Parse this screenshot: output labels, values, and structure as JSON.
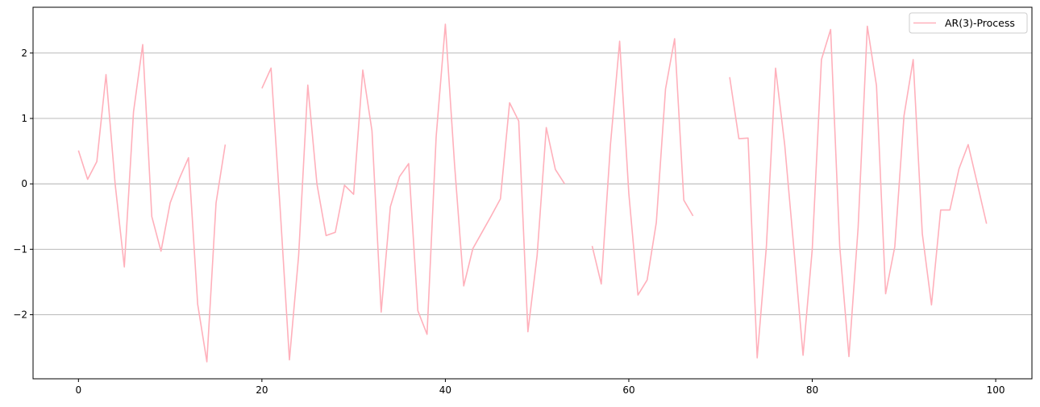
{
  "chart_data": {
    "type": "line",
    "title": "",
    "xlabel": "",
    "ylabel": "",
    "xlim": [
      -4.95,
      103.95
    ],
    "ylim": [
      -2.98,
      2.7
    ],
    "xticks": [
      0,
      20,
      40,
      60,
      80,
      100
    ],
    "yticks": [
      -2,
      -1,
      0,
      1,
      2
    ],
    "xtick_labels": [
      "0",
      "20",
      "40",
      "60",
      "80",
      "100"
    ],
    "ytick_labels": [
      "−2",
      "−1",
      "0",
      "1",
      "2"
    ],
    "grid": "y-axis only",
    "legend_position": "top-right",
    "series": [
      {
        "name": "AR(3)-Process",
        "color": "#ffb0bb",
        "x": [
          0,
          1,
          2,
          3,
          4,
          5,
          6,
          7,
          8,
          9,
          10,
          11,
          12,
          13,
          14,
          15,
          16,
          17,
          18,
          19,
          20,
          21,
          22,
          23,
          24,
          25,
          26,
          27,
          28,
          29,
          30,
          31,
          32,
          33,
          34,
          35,
          36,
          37,
          38,
          39,
          40,
          41,
          42,
          43,
          44,
          45,
          46,
          47,
          48,
          49,
          50,
          51,
          52,
          53,
          54,
          55,
          56,
          57,
          58,
          59,
          60,
          61,
          62,
          63,
          64,
          65,
          66,
          67,
          68,
          69,
          70,
          71,
          72,
          73,
          74,
          75,
          76,
          77,
          78,
          79,
          80,
          81,
          82,
          83,
          84,
          85,
          86,
          87,
          88,
          89,
          90,
          91,
          92,
          93,
          94,
          95,
          96,
          97,
          98,
          99
        ],
        "values": [
          0.51,
          0.07,
          0.34,
          1.67,
          0.0,
          -1.27,
          1.1,
          2.13,
          -0.5,
          -1.03,
          -0.29,
          0.08,
          0.4,
          -1.84,
          -2.72,
          -0.29,
          0.6,
          null,
          null,
          null,
          1.46,
          1.77,
          -0.4,
          -2.69,
          -1.1,
          1.51,
          0.0,
          -0.79,
          -0.74,
          -0.02,
          -0.16,
          1.74,
          0.81,
          -1.96,
          -0.35,
          0.11,
          0.31,
          -1.94,
          -2.3,
          0.72,
          2.44,
          0.3,
          -1.56,
          -0.99,
          -0.74,
          -0.49,
          -0.23,
          1.24,
          0.96,
          -2.26,
          -1.1,
          0.86,
          0.22,
          0.0,
          null,
          null,
          -0.95,
          -1.53,
          0.6,
          2.18,
          -0.15,
          -1.7,
          -1.47,
          -0.59,
          1.45,
          2.22,
          -0.25,
          -0.49,
          null,
          null,
          null,
          1.63,
          0.69,
          0.7,
          -2.66,
          -0.96,
          1.77,
          0.59,
          -1.0,
          -2.62,
          -1.0,
          1.9,
          2.36,
          -0.96,
          -2.64,
          -0.67,
          2.41,
          1.5,
          -1.68,
          -0.96,
          1.04,
          1.9,
          -0.76,
          -1.85,
          -0.4,
          -0.4,
          0.23,
          0.6,
          0.0,
          -0.61
        ]
      }
    ]
  }
}
